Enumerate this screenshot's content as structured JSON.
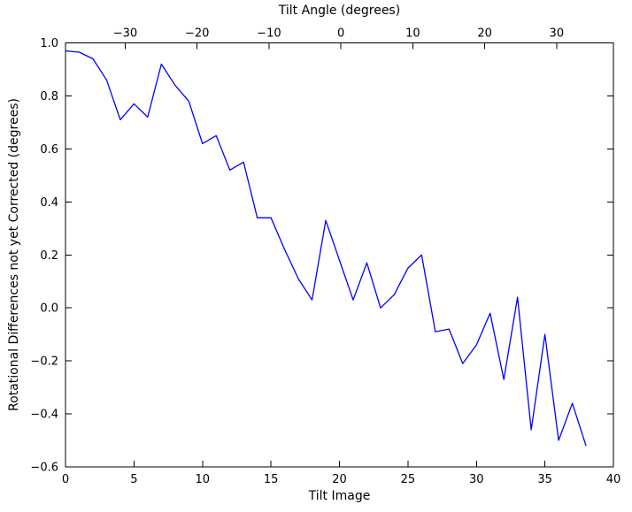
{
  "figure": {
    "background_color": "#ffffff",
    "axis_color": "#000000",
    "line_color": "#0000ff"
  },
  "chart_data": {
    "type": "line",
    "grid": false,
    "legend": null,
    "top_axis": {
      "label": "Tilt Angle (degrees)",
      "ticks": [
        -30,
        -20,
        -10,
        0,
        10,
        20,
        30
      ],
      "range": [
        -38.3,
        37.9
      ]
    },
    "bottom_axis": {
      "label": "Tilt Image",
      "ticks": [
        0,
        5,
        10,
        15,
        20,
        25,
        30,
        35,
        40
      ],
      "range": [
        0,
        40
      ]
    },
    "y_axis": {
      "label": "Rotational Differences not yet Corrected (degrees)",
      "ticks": [
        1.0,
        0.8,
        0.6,
        0.4,
        0.2,
        0.0,
        -0.2,
        -0.4,
        -0.6
      ],
      "range": [
        -0.6,
        1.0
      ]
    },
    "series": [
      {
        "name": "rotational-differences",
        "color": "#0000ff",
        "x": [
          0,
          1,
          2,
          3,
          4,
          5,
          6,
          7,
          8,
          9,
          10,
          11,
          12,
          13,
          14,
          15,
          16,
          17,
          18,
          19,
          20,
          21,
          22,
          23,
          24,
          25,
          26,
          27,
          28,
          29,
          30,
          31,
          32,
          33,
          34,
          35,
          36,
          37,
          38
        ],
        "y": [
          0.97,
          0.965,
          0.94,
          0.86,
          0.71,
          0.77,
          0.72,
          0.92,
          0.84,
          0.78,
          0.62,
          0.65,
          0.52,
          0.55,
          0.34,
          0.34,
          0.22,
          0.11,
          0.03,
          0.33,
          0.18,
          0.03,
          0.17,
          0.0,
          0.05,
          0.15,
          0.2,
          -0.09,
          -0.08,
          -0.21,
          -0.14,
          -0.02,
          -0.27,
          0.04,
          -0.46,
          -0.1,
          -0.5,
          -0.36,
          -0.52
        ]
      }
    ]
  }
}
